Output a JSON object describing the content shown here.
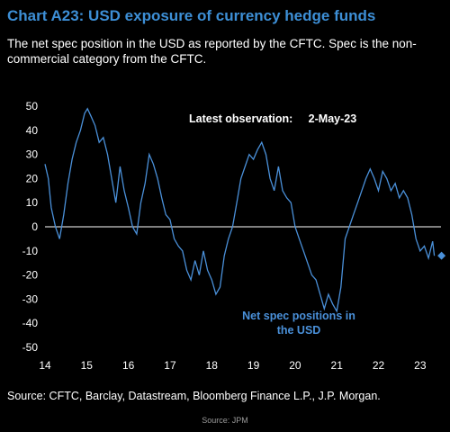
{
  "title": "Chart A23: USD exposure of currency hedge funds",
  "subtitle": "The net spec position in the USD as reported by the CFTC. Spec is the non-commercial category from the CFTC.",
  "source": "Source: CFTC, Barclay, Datastream, Bloomberg Finance L.P., J.P. Morgan.",
  "credit": "Source: JPM",
  "colors": {
    "line": "#4a90d9",
    "title": "#3d8fd6",
    "background": "#000000",
    "text": "#ffffff"
  },
  "chart_data": {
    "type": "line",
    "title": "",
    "xlabel": "",
    "ylabel": "",
    "xlim": [
      14,
      23.5
    ],
    "ylim": [
      -50,
      50
    ],
    "x_ticks": [
      "14",
      "15",
      "16",
      "17",
      "18",
      "19",
      "20",
      "21",
      "22",
      "23"
    ],
    "y_ticks": [
      "50",
      "40",
      "30",
      "20",
      "10",
      "0",
      "-10",
      "-20",
      "-30",
      "-40",
      "-50"
    ],
    "annotation_latest": "Latest observation:     2-May-23",
    "series": [
      {
        "name": "Net spec positions in the USD",
        "x": [
          14.0,
          14.08,
          14.15,
          14.25,
          14.35,
          14.45,
          14.55,
          14.65,
          14.75,
          14.85,
          14.95,
          15.02,
          15.1,
          15.2,
          15.3,
          15.4,
          15.5,
          15.6,
          15.7,
          15.8,
          15.9,
          16.0,
          16.1,
          16.2,
          16.3,
          16.4,
          16.5,
          16.6,
          16.7,
          16.8,
          16.9,
          17.0,
          17.1,
          17.2,
          17.3,
          17.4,
          17.5,
          17.6,
          17.7,
          17.8,
          17.9,
          18.0,
          18.1,
          18.2,
          18.3,
          18.4,
          18.5,
          18.6,
          18.7,
          18.8,
          18.9,
          19.0,
          19.1,
          19.2,
          19.3,
          19.4,
          19.5,
          19.6,
          19.7,
          19.8,
          19.9,
          20.0,
          20.1,
          20.2,
          20.3,
          20.4,
          20.5,
          20.6,
          20.7,
          20.8,
          20.9,
          21.0,
          21.1,
          21.2,
          21.3,
          21.4,
          21.5,
          21.6,
          21.7,
          21.8,
          21.9,
          22.0,
          22.1,
          22.2,
          22.3,
          22.4,
          22.5,
          22.6,
          22.7,
          22.8,
          22.9,
          23.0,
          23.1,
          23.2,
          23.3,
          23.34
        ],
        "y": [
          26,
          20,
          8,
          0,
          -5,
          5,
          18,
          28,
          35,
          40,
          47,
          49,
          46,
          42,
          35,
          37,
          30,
          20,
          10,
          25,
          15,
          8,
          0,
          -3,
          10,
          18,
          30,
          26,
          20,
          12,
          5,
          3,
          -5,
          -8,
          -10,
          -18,
          -22,
          -14,
          -20,
          -10,
          -18,
          -22,
          -28,
          -25,
          -12,
          -5,
          0,
          10,
          20,
          25,
          30,
          28,
          32,
          35,
          30,
          20,
          15,
          25,
          15,
          12,
          10,
          0,
          -5,
          -10,
          -15,
          -20,
          -22,
          -28,
          -34,
          -28,
          -32,
          -35,
          -25,
          -5,
          0,
          5,
          10,
          15,
          20,
          24,
          20,
          15,
          23,
          20,
          15,
          18,
          12,
          15,
          12,
          5,
          -5,
          -10,
          -8,
          -13,
          -6,
          -12
        ]
      }
    ],
    "series_label_line1": "Net spec positions in",
    "series_label_line2": "the USD"
  }
}
